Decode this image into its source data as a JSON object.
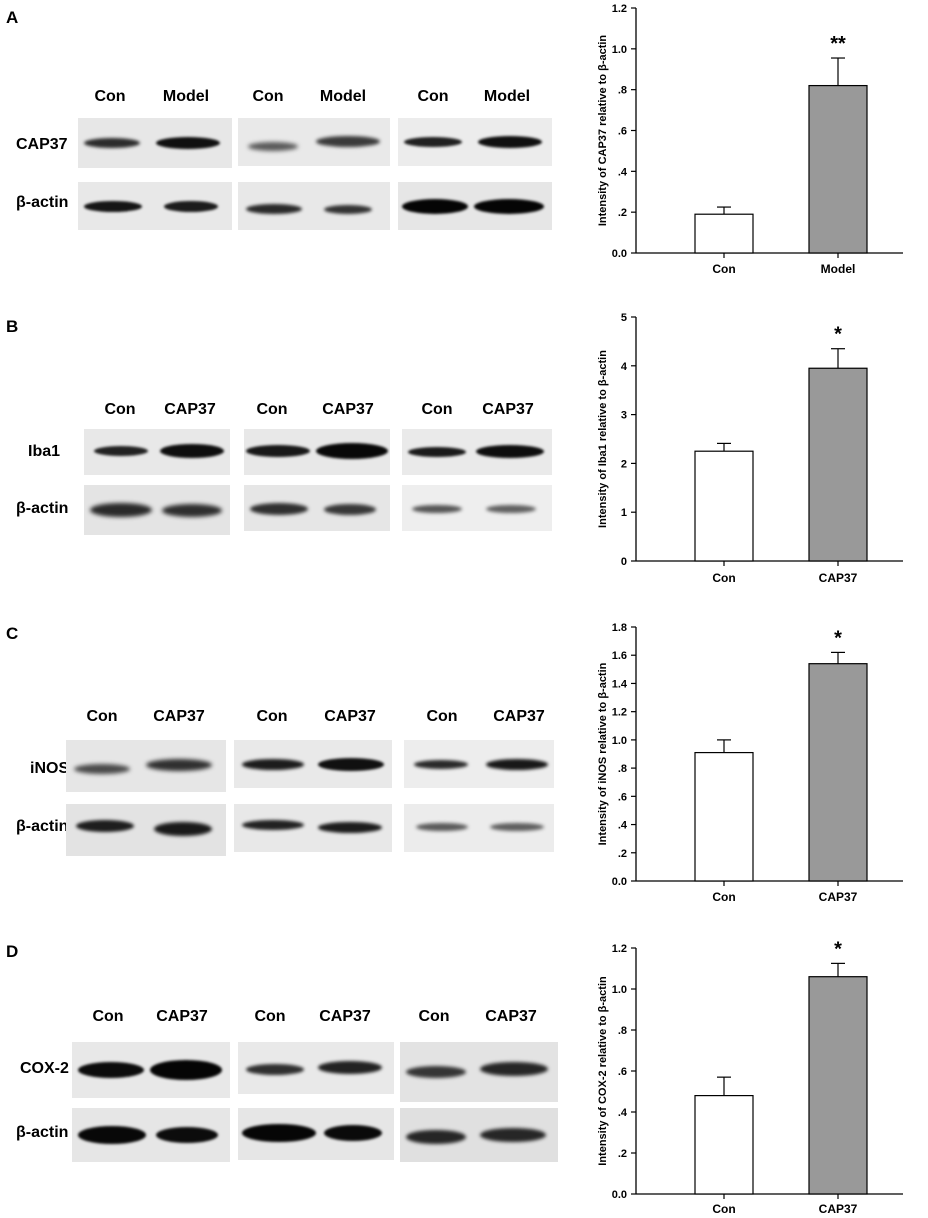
{
  "panels": [
    {
      "letter": "A",
      "lanes": [
        "Con",
        "Model",
        "Con",
        "Model",
        "Con",
        "Model"
      ],
      "rows": [
        "CAP37",
        "β-actin"
      ],
      "chart_data": {
        "type": "bar",
        "categories": [
          "Con",
          "Model"
        ],
        "values": [
          0.19,
          0.82
        ],
        "errors": [
          0.035,
          0.135
        ],
        "ylabel": "Intensity of CAP37 relative to β-actin",
        "ylim": [
          0,
          1.2
        ],
        "ticks": [
          0,
          0.2,
          0.4,
          0.6,
          0.8,
          1.0,
          1.2
        ],
        "tick_labels": [
          "0.0",
          ".2",
          ".4",
          ".6",
          ".8",
          "1.0",
          "1.2"
        ],
        "significance": "**",
        "colors": [
          "#ffffff",
          "#999999"
        ]
      }
    },
    {
      "letter": "B",
      "lanes": [
        "Con",
        "CAP37",
        "Con",
        "CAP37",
        "Con",
        "CAP37"
      ],
      "rows": [
        "Iba1",
        "β-actin"
      ],
      "chart_data": {
        "type": "bar",
        "categories": [
          "Con",
          "CAP37"
        ],
        "values": [
          2.25,
          3.95
        ],
        "errors": [
          0.16,
          0.4
        ],
        "ylabel": "Intensity of Iba1 relative to β-actin",
        "ylim": [
          0,
          5
        ],
        "ticks": [
          0,
          1,
          2,
          3,
          4,
          5
        ],
        "tick_labels": [
          "0",
          "1",
          "2",
          "3",
          "4",
          "5"
        ],
        "significance": "*",
        "colors": [
          "#ffffff",
          "#999999"
        ]
      }
    },
    {
      "letter": "C",
      "lanes": [
        "Con",
        "CAP37",
        "Con",
        "CAP37",
        "Con",
        "CAP37"
      ],
      "rows": [
        "iNOS",
        "β-actin"
      ],
      "chart_data": {
        "type": "bar",
        "categories": [
          "Con",
          "CAP37"
        ],
        "values": [
          0.91,
          1.54
        ],
        "errors": [
          0.09,
          0.08
        ],
        "ylabel": "Intensity of iNOS relative to β-actin",
        "ylim": [
          0,
          1.8
        ],
        "ticks": [
          0,
          0.2,
          0.4,
          0.6,
          0.8,
          1.0,
          1.2,
          1.4,
          1.6,
          1.8
        ],
        "tick_labels": [
          "0.0",
          ".2",
          ".4",
          ".6",
          ".8",
          "1.0",
          "1.2",
          "1.4",
          "1.6",
          "1.8"
        ],
        "significance": "*",
        "colors": [
          "#ffffff",
          "#999999"
        ]
      }
    },
    {
      "letter": "D",
      "lanes": [
        "Con",
        "CAP37",
        "Con",
        "CAP37",
        "Con",
        "CAP37"
      ],
      "rows": [
        "COX-2",
        "β-actin"
      ],
      "chart_data": {
        "type": "bar",
        "categories": [
          "Con",
          "CAP37"
        ],
        "values": [
          0.48,
          1.06
        ],
        "errors": [
          0.09,
          0.065
        ],
        "ylabel": "Intensity of COX-2 relative to β-actin",
        "ylim": [
          0,
          1.2
        ],
        "ticks": [
          0,
          0.2,
          0.4,
          0.6,
          0.8,
          1.0,
          1.2
        ],
        "tick_labels": [
          "0.0",
          ".2",
          ".4",
          ".6",
          ".8",
          "1.0",
          "1.2"
        ],
        "significance": "*",
        "colors": [
          "#ffffff",
          "#999999"
        ]
      }
    }
  ]
}
